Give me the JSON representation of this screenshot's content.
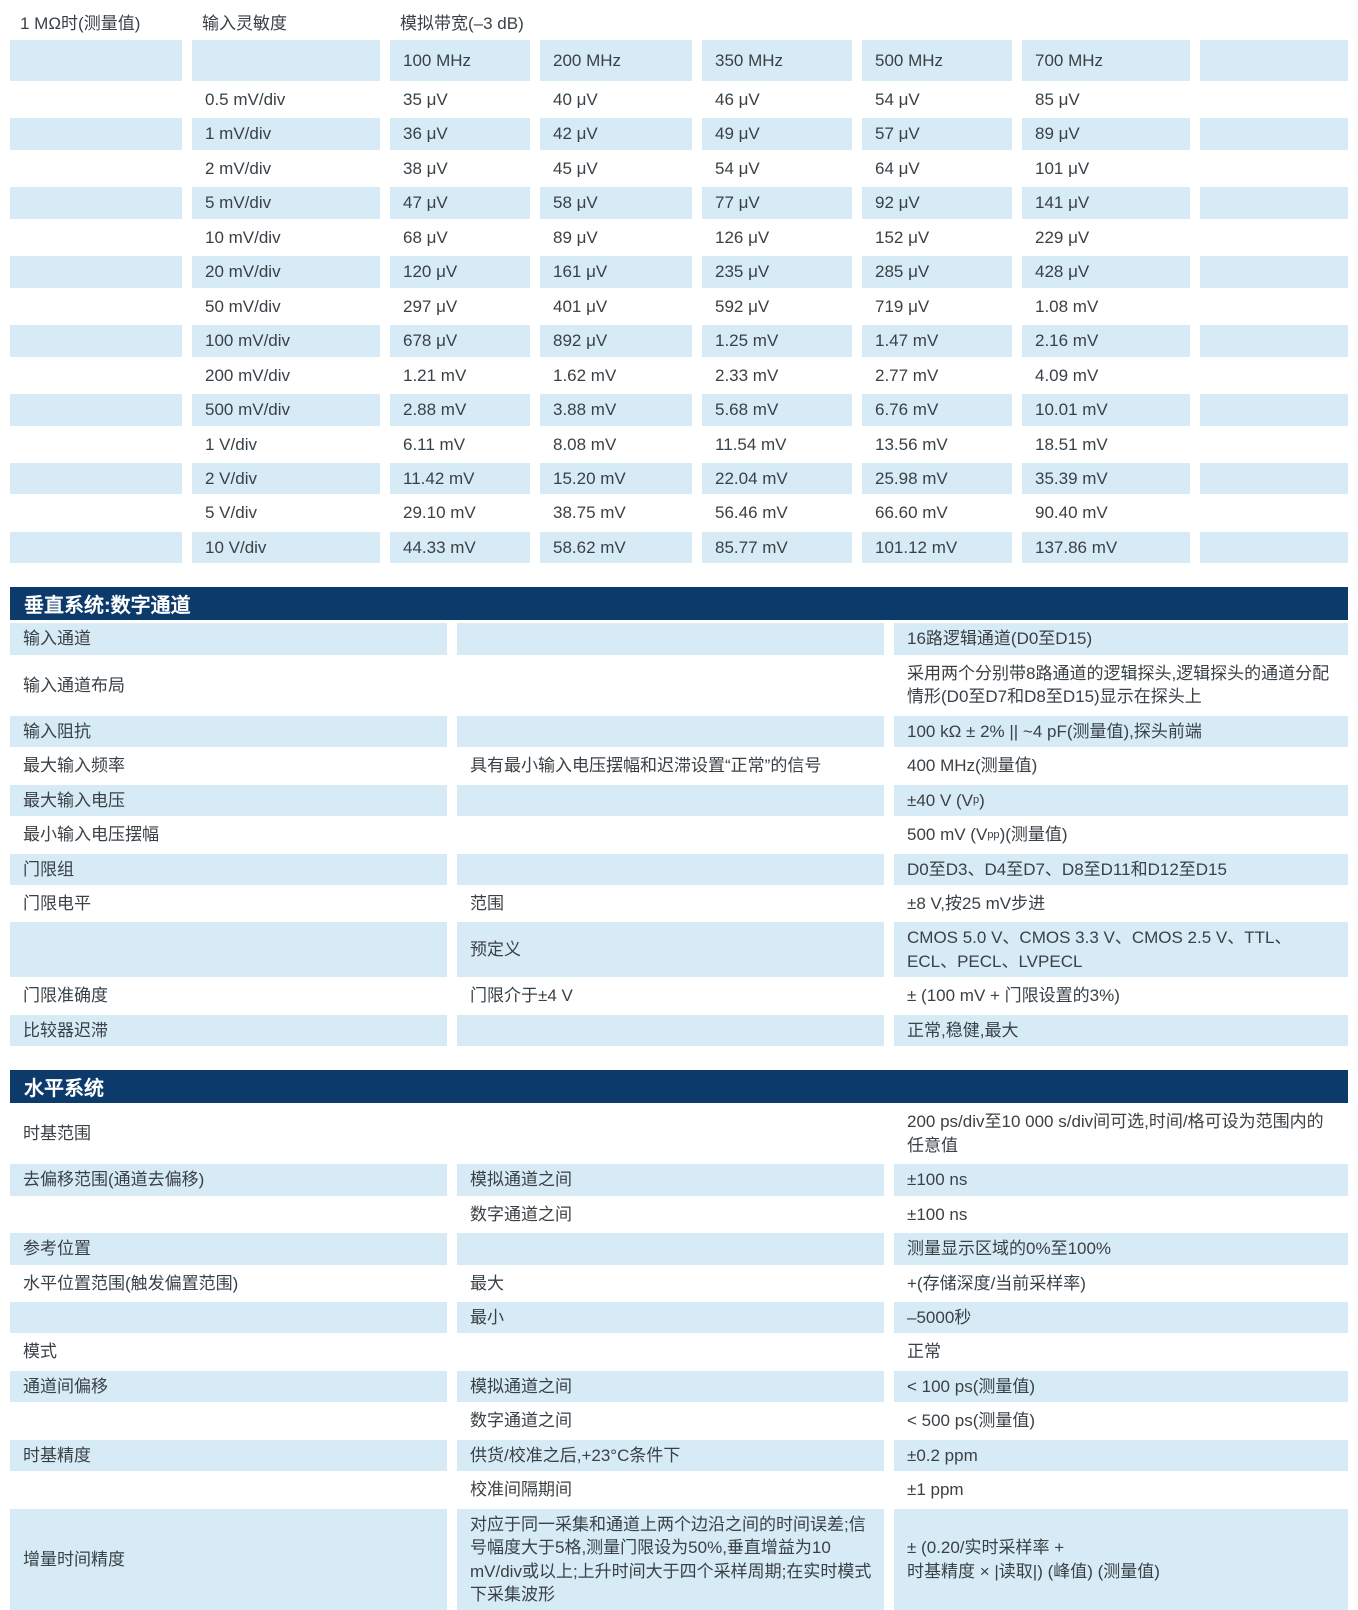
{
  "theme": {
    "header_bar_color": "#0b3a6b",
    "row_shade_color": "#d7ebf7",
    "text_color": "#3a4146"
  },
  "sensitivity_table": {
    "corner_label": "1 MΩ时(测量值)",
    "col2_label": "输入灵敏度",
    "col3_label": "模拟带宽(–3 dB)",
    "bandwidth_headers": [
      "100 MHz",
      "200 MHz",
      "350 MHz",
      "500 MHz",
      "700 MHz"
    ],
    "rows": [
      {
        "sensitivity": "0.5 mV/div",
        "values": [
          "35 μV",
          "40 μV",
          "46 μV",
          "54 μV",
          "85 μV"
        ]
      },
      {
        "sensitivity": "1 mV/div",
        "values": [
          "36 μV",
          "42 μV",
          "49 μV",
          "57 μV",
          "89 μV"
        ]
      },
      {
        "sensitivity": "2 mV/div",
        "values": [
          "38 μV",
          "45 μV",
          "54 μV",
          "64 μV",
          "101 μV"
        ]
      },
      {
        "sensitivity": "5 mV/div",
        "values": [
          "47 μV",
          "58 μV",
          "77 μV",
          "92 μV",
          "141 μV"
        ]
      },
      {
        "sensitivity": "10 mV/div",
        "values": [
          "68 μV",
          "89 μV",
          "126 μV",
          "152 μV",
          "229 μV"
        ]
      },
      {
        "sensitivity": "20 mV/div",
        "values": [
          "120 μV",
          "161 μV",
          "235 μV",
          "285 μV",
          "428 μV"
        ]
      },
      {
        "sensitivity": "50 mV/div",
        "values": [
          "297 μV",
          "401 μV",
          "592 μV",
          "719 μV",
          "1.08 mV"
        ]
      },
      {
        "sensitivity": "100 mV/div",
        "values": [
          "678 μV",
          "892 μV",
          "1.25 mV",
          "1.47 mV",
          "2.16 mV"
        ]
      },
      {
        "sensitivity": "200 mV/div",
        "values": [
          "1.21 mV",
          "1.62 mV",
          "2.33 mV",
          "2.77 mV",
          "4.09 mV"
        ]
      },
      {
        "sensitivity": "500 mV/div",
        "values": [
          "2.88 mV",
          "3.88 mV",
          "5.68 mV",
          "6.76 mV",
          "10.01 mV"
        ]
      },
      {
        "sensitivity": "1 V/div",
        "values": [
          "6.11 mV",
          "8.08 mV",
          "11.54 mV",
          "13.56 mV",
          "18.51 mV"
        ]
      },
      {
        "sensitivity": "2 V/div",
        "values": [
          "11.42 mV",
          "15.20 mV",
          "22.04 mV",
          "25.98 mV",
          "35.39 mV"
        ]
      },
      {
        "sensitivity": "5 V/div",
        "values": [
          "29.10 mV",
          "38.75 mV",
          "56.46 mV",
          "66.60 mV",
          "90.40 mV"
        ]
      },
      {
        "sensitivity": "10 V/div",
        "values": [
          "44.33 mV",
          "58.62 mV",
          "85.77 mV",
          "101.12 mV",
          "137.86 mV"
        ]
      }
    ]
  },
  "sections": [
    {
      "title": "垂直系统:数字通道",
      "first_row_shaded": true,
      "rows": [
        {
          "param": "输入通道",
          "cond": "",
          "value": "16路逻辑通道(D0至D15)"
        },
        {
          "param": "输入通道布局",
          "cond": "",
          "value": "采用两个分别带8路通道的逻辑探头,逻辑探头的通道分配情形(D0至D7和D8至D15)显示在探头上"
        },
        {
          "param": "输入阻抗",
          "cond": "",
          "value": "100 kΩ ± 2% || ~4 pF(测量值),探头前端"
        },
        {
          "param": "最大输入频率",
          "cond": "具有最小输入电压摆幅和迟滞设置“正常”的信号",
          "value": "400 MHz(测量值)"
        },
        {
          "param": "最大输入电压",
          "cond": "",
          "value": [
            "±40 V (V",
            {
              "sub": "p"
            },
            ")"
          ]
        },
        {
          "param": "最小输入电压摆幅",
          "cond": "",
          "value": [
            "500 mV (V",
            {
              "sub": "pp"
            },
            ")(测量值)"
          ]
        },
        {
          "param": "门限组",
          "cond": "",
          "value": "D0至D3、D4至D7、D8至D11和D12至D15"
        },
        {
          "param": "门限电平",
          "cond": "范围",
          "value": "±8 V,按25 mV步进"
        },
        {
          "param": "",
          "cond": "预定义",
          "value": "CMOS 5.0 V、CMOS 3.3 V、CMOS 2.5 V、TTL、ECL、PECL、LVPECL"
        },
        {
          "param": "门限准确度",
          "cond": "门限介于±4 V",
          "value": "± (100 mV + 门限设置的3%)"
        },
        {
          "param": "比较器迟滞",
          "cond": "",
          "value": "正常,稳健,最大"
        }
      ]
    },
    {
      "title": "水平系统",
      "first_row_shaded": false,
      "rows": [
        {
          "param": "时基范围",
          "cond": "",
          "value": "200 ps/div至10 000 s/div间可选,时间/格可设为范围内的任意值"
        },
        {
          "param": "去偏移范围(通道去偏移)",
          "cond": "模拟通道之间",
          "value": "±100 ns"
        },
        {
          "param": "",
          "cond": "数字通道之间",
          "value": "±100 ns"
        },
        {
          "param": "参考位置",
          "cond": "",
          "value": "测量显示区域的0%至100%"
        },
        {
          "param": "水平位置范围(触发偏置范围)",
          "cond": "最大",
          "value": "+(存储深度/当前采样率)"
        },
        {
          "param": "",
          "cond": "最小",
          "value": "–5000秒"
        },
        {
          "param": "模式",
          "cond": "",
          "value": "正常"
        },
        {
          "param": "通道间偏移",
          "cond": "模拟通道之间",
          "value": "< 100 ps(测量值)"
        },
        {
          "param": "",
          "cond": "数字通道之间",
          "value": "< 500 ps(测量值)"
        },
        {
          "param": "时基精度",
          "cond": "供货/校准之后,+23°C条件下",
          "value": "±0.2 ppm"
        },
        {
          "param": "",
          "cond": "校准间隔期间",
          "value": "±1 ppm"
        },
        {
          "param": "增量时间精度",
          "cond": "对应于同一采集和通道上两个边沿之间的时间误差;信号幅度大于5格,测量门限设为50%,垂直增益为10 mV/div或以上;上升时间大于四个采样周期;在实时模式下采集波形",
          "value": "± (0.20/实时采样率 +\n时基精度 × |读取|) (峰值) (测量值)"
        }
      ]
    }
  ]
}
